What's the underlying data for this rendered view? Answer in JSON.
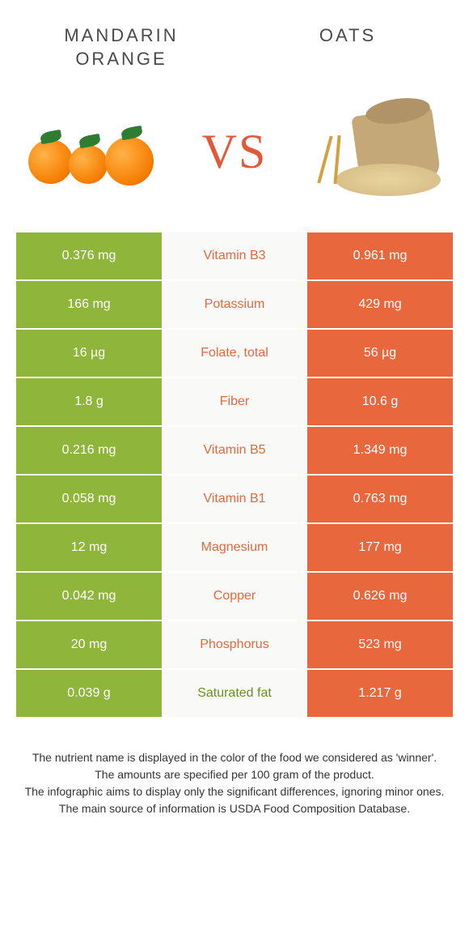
{
  "foods": {
    "left": {
      "name": "MANDARIN\nORANGE",
      "color": "#8fb53a"
    },
    "right": {
      "name": "OATS",
      "color": "#e9673d"
    }
  },
  "vs_label": "VS",
  "vs_color": "#e05a3a",
  "colors": {
    "left_cell": "#8fb53a",
    "right_cell": "#e9673d",
    "mid_cell": "#f9f9f7",
    "row_gap": "#ffffff",
    "nutrient_left_winner": "#6a8f1f",
    "nutrient_right_winner": "#e9673d"
  },
  "rows": [
    {
      "nutrient": "Vitamin B3",
      "left": "0.376 mg",
      "right": "0.961 mg",
      "winner": "right"
    },
    {
      "nutrient": "Potassium",
      "left": "166 mg",
      "right": "429 mg",
      "winner": "right"
    },
    {
      "nutrient": "Folate, total",
      "left": "16 µg",
      "right": "56 µg",
      "winner": "right"
    },
    {
      "nutrient": "Fiber",
      "left": "1.8 g",
      "right": "10.6 g",
      "winner": "right"
    },
    {
      "nutrient": "Vitamin B5",
      "left": "0.216 mg",
      "right": "1.349 mg",
      "winner": "right"
    },
    {
      "nutrient": "Vitamin B1",
      "left": "0.058 mg",
      "right": "0.763 mg",
      "winner": "right"
    },
    {
      "nutrient": "Magnesium",
      "left": "12 mg",
      "right": "177 mg",
      "winner": "right"
    },
    {
      "nutrient": "Copper",
      "left": "0.042 mg",
      "right": "0.626 mg",
      "winner": "right"
    },
    {
      "nutrient": "Phosphorus",
      "left": "20 mg",
      "right": "523 mg",
      "winner": "right"
    },
    {
      "nutrient": "Saturated fat",
      "left": "0.039 g",
      "right": "1.217 g",
      "winner": "left"
    }
  ],
  "footer_lines": [
    "The nutrient name is displayed in the color of the food we considered as 'winner'.",
    "The amounts are specified per 100 gram of the product.",
    "The infographic aims to display only the significant differences, ignoring minor ones.",
    "The main source of information is USDA Food Composition Database."
  ]
}
